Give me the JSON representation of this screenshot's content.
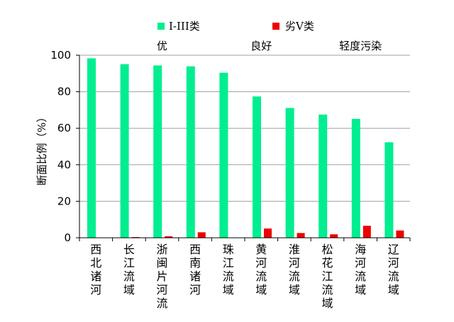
{
  "chart_data": {
    "type": "bar",
    "ylabel": "断面比例（%）",
    "ylim": [
      0,
      100
    ],
    "yticks": [
      0,
      20,
      40,
      60,
      80,
      100
    ],
    "grid": true,
    "legend_position": "top",
    "categories": [
      "西北诸河",
      "长江流域",
      "浙闽片河流",
      "西南诸河",
      "珠江流域",
      "黄河流域",
      "淮河流域",
      "松花江流域",
      "海河流域",
      "辽河流域"
    ],
    "series": [
      {
        "name": "I-III类",
        "color": "#00ee90",
        "values": [
          98.3,
          95.1,
          94.4,
          93.9,
          90.4,
          77.4,
          71.1,
          67.5,
          65.1,
          52.3
        ]
      },
      {
        "name": "劣V类",
        "color": "#ee0000",
        "values": [
          0,
          0.4,
          0.8,
          3.0,
          0,
          5.1,
          2.6,
          1.9,
          6.6,
          4.0
        ]
      }
    ],
    "bands": [
      {
        "label": "优",
        "category_index": 2
      },
      {
        "label": "良好",
        "category_index": 5
      },
      {
        "label": "轻度污染",
        "category_index": 8
      }
    ]
  }
}
